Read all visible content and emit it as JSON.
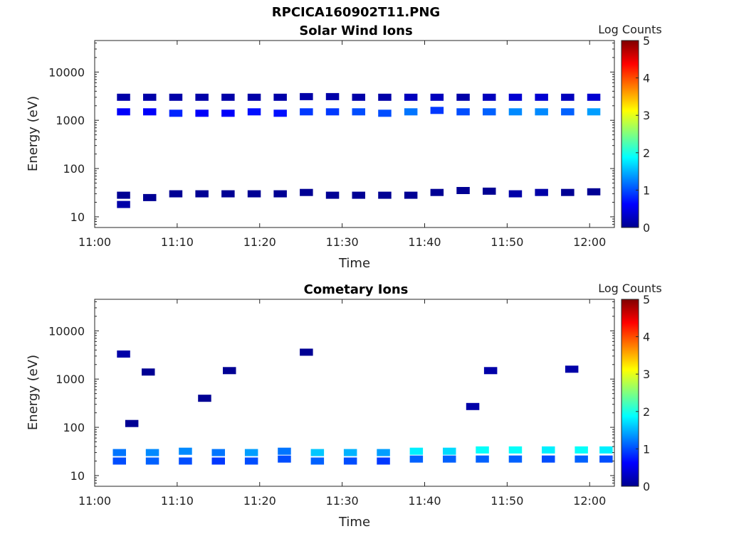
{
  "figure": {
    "title": "RPCICA160902T11.PNG"
  },
  "chart_data": [
    {
      "type": "heatmap",
      "title": "Solar Wind Ions",
      "xlabel": "Time",
      "ylabel": "Energy (eV)",
      "y_scale": "log",
      "xlim": [
        "11:00",
        "12:03"
      ],
      "ylim": [
        6,
        45000
      ],
      "x_ticks": [
        "11:00",
        "11:10",
        "11:20",
        "11:30",
        "11:40",
        "11:50",
        "12:00"
      ],
      "y_ticks": [
        "10",
        "100",
        "1000",
        "10000"
      ],
      "colorbar": {
        "label": "Log Counts",
        "range": [
          0,
          5
        ],
        "ticks": [
          "0",
          "1",
          "2",
          "3",
          "4",
          "5"
        ]
      },
      "cells": [
        {
          "t": "11:03:30",
          "e": 3000,
          "v": 0.2
        },
        {
          "t": "11:03:30",
          "e": 1500,
          "v": 0.6
        },
        {
          "t": "11:03:30",
          "e": 18,
          "v": 0.2
        },
        {
          "t": "11:03:30",
          "e": 28,
          "v": 0.1
        },
        {
          "t": "11:06:40",
          "e": 3000,
          "v": 0.2
        },
        {
          "t": "11:06:40",
          "e": 1500,
          "v": 0.6
        },
        {
          "t": "11:06:40",
          "e": 25,
          "v": 0.1
        },
        {
          "t": "11:09:50",
          "e": 3000,
          "v": 0.2
        },
        {
          "t": "11:09:50",
          "e": 1400,
          "v": 0.8
        },
        {
          "t": "11:09:50",
          "e": 30,
          "v": 0.1
        },
        {
          "t": "11:13:00",
          "e": 3000,
          "v": 0.2
        },
        {
          "t": "11:13:00",
          "e": 1400,
          "v": 0.6
        },
        {
          "t": "11:13:00",
          "e": 30,
          "v": 0.1
        },
        {
          "t": "11:16:10",
          "e": 3000,
          "v": 0.2
        },
        {
          "t": "11:16:10",
          "e": 1400,
          "v": 0.6
        },
        {
          "t": "11:16:10",
          "e": 30,
          "v": 0.1
        },
        {
          "t": "11:19:20",
          "e": 3000,
          "v": 0.2
        },
        {
          "t": "11:19:20",
          "e": 1500,
          "v": 0.7
        },
        {
          "t": "11:19:20",
          "e": 30,
          "v": 0.1
        },
        {
          "t": "11:22:30",
          "e": 3000,
          "v": 0.2
        },
        {
          "t": "11:22:30",
          "e": 1400,
          "v": 0.7
        },
        {
          "t": "11:22:30",
          "e": 30,
          "v": 0.1
        },
        {
          "t": "11:25:40",
          "e": 3100,
          "v": 0.2
        },
        {
          "t": "11:25:40",
          "e": 1500,
          "v": 0.9
        },
        {
          "t": "11:25:40",
          "e": 32,
          "v": 0.1
        },
        {
          "t": "11:28:50",
          "e": 3100,
          "v": 0.2
        },
        {
          "t": "11:28:50",
          "e": 1500,
          "v": 0.9
        },
        {
          "t": "11:28:50",
          "e": 28,
          "v": 0.1
        },
        {
          "t": "11:32:00",
          "e": 3000,
          "v": 0.2
        },
        {
          "t": "11:32:00",
          "e": 1500,
          "v": 1.0
        },
        {
          "t": "11:32:00",
          "e": 28,
          "v": 0.1
        },
        {
          "t": "11:35:10",
          "e": 3000,
          "v": 0.2
        },
        {
          "t": "11:35:10",
          "e": 1400,
          "v": 1.0
        },
        {
          "t": "11:35:10",
          "e": 28,
          "v": 0.1
        },
        {
          "t": "11:38:20",
          "e": 3000,
          "v": 0.3
        },
        {
          "t": "11:38:20",
          "e": 1500,
          "v": 1.2
        },
        {
          "t": "11:38:20",
          "e": 28,
          "v": 0.1
        },
        {
          "t": "11:41:30",
          "e": 3000,
          "v": 0.3
        },
        {
          "t": "11:41:30",
          "e": 1600,
          "v": 0.9
        },
        {
          "t": "11:41:30",
          "e": 32,
          "v": 0.1
        },
        {
          "t": "11:44:40",
          "e": 3000,
          "v": 0.2
        },
        {
          "t": "11:44:40",
          "e": 1500,
          "v": 1.0
        },
        {
          "t": "11:44:40",
          "e": 35,
          "v": 0.1
        },
        {
          "t": "11:47:50",
          "e": 3000,
          "v": 0.3
        },
        {
          "t": "11:47:50",
          "e": 1500,
          "v": 1.1
        },
        {
          "t": "11:47:50",
          "e": 34,
          "v": 0.1
        },
        {
          "t": "11:51:00",
          "e": 3000,
          "v": 0.4
        },
        {
          "t": "11:51:00",
          "e": 1500,
          "v": 1.3
        },
        {
          "t": "11:51:00",
          "e": 30,
          "v": 0.2
        },
        {
          "t": "11:54:10",
          "e": 3000,
          "v": 0.4
        },
        {
          "t": "11:54:10",
          "e": 1500,
          "v": 1.3
        },
        {
          "t": "11:54:10",
          "e": 32,
          "v": 0.2
        },
        {
          "t": "11:57:20",
          "e": 3000,
          "v": 0.3
        },
        {
          "t": "11:57:20",
          "e": 1500,
          "v": 1.1
        },
        {
          "t": "11:57:20",
          "e": 32,
          "v": 0.1
        },
        {
          "t": "12:00:30",
          "e": 3000,
          "v": 0.4
        },
        {
          "t": "12:00:30",
          "e": 1500,
          "v": 1.4
        },
        {
          "t": "12:00:30",
          "e": 33,
          "v": 0.1
        }
      ]
    },
    {
      "type": "heatmap",
      "title": "Cometary Ions",
      "xlabel": "Time",
      "ylabel": "Energy (eV)",
      "y_scale": "log",
      "xlim": [
        "11:00",
        "12:03"
      ],
      "ylim": [
        6,
        45000
      ],
      "x_ticks": [
        "11:00",
        "11:10",
        "11:20",
        "11:30",
        "11:40",
        "11:50",
        "12:00"
      ],
      "y_ticks": [
        "10",
        "100",
        "1000",
        "10000"
      ],
      "colorbar": {
        "label": "Log Counts",
        "range": [
          0,
          5
        ],
        "ticks": [
          "0",
          "1",
          "2",
          "3",
          "4",
          "5"
        ]
      },
      "cells": [
        {
          "t": "11:03:30",
          "e": 3300,
          "v": 0.2
        },
        {
          "t": "11:04:30",
          "e": 120,
          "v": 0.1
        },
        {
          "t": "11:06:30",
          "e": 1400,
          "v": 0.1
        },
        {
          "t": "11:13:20",
          "e": 400,
          "v": 0.1
        },
        {
          "t": "11:16:20",
          "e": 1500,
          "v": 0.1
        },
        {
          "t": "11:25:40",
          "e": 3600,
          "v": 0.1
        },
        {
          "t": "11:45:50",
          "e": 270,
          "v": 0.2
        },
        {
          "t": "11:48:00",
          "e": 1500,
          "v": 0.2
        },
        {
          "t": "11:57:50",
          "e": 1600,
          "v": 0.2
        },
        {
          "t": "11:03:00",
          "e": 30,
          "v": 1.2
        },
        {
          "t": "11:03:00",
          "e": 20,
          "v": 1.0
        },
        {
          "t": "11:07:00",
          "e": 30,
          "v": 1.3
        },
        {
          "t": "11:07:00",
          "e": 20,
          "v": 1.1
        },
        {
          "t": "11:11:00",
          "e": 32,
          "v": 1.3
        },
        {
          "t": "11:11:00",
          "e": 20,
          "v": 1.0
        },
        {
          "t": "11:15:00",
          "e": 30,
          "v": 1.2
        },
        {
          "t": "11:15:00",
          "e": 20,
          "v": 0.9
        },
        {
          "t": "11:19:00",
          "e": 30,
          "v": 1.4
        },
        {
          "t": "11:19:00",
          "e": 20,
          "v": 1.0
        },
        {
          "t": "11:23:00",
          "e": 32,
          "v": 1.2
        },
        {
          "t": "11:23:00",
          "e": 22,
          "v": 1.0
        },
        {
          "t": "11:27:00",
          "e": 30,
          "v": 1.6
        },
        {
          "t": "11:27:00",
          "e": 20,
          "v": 1.1
        },
        {
          "t": "11:31:00",
          "e": 30,
          "v": 1.5
        },
        {
          "t": "11:31:00",
          "e": 20,
          "v": 1.0
        },
        {
          "t": "11:35:00",
          "e": 30,
          "v": 1.4
        },
        {
          "t": "11:35:00",
          "e": 20,
          "v": 0.9
        },
        {
          "t": "11:39:00",
          "e": 32,
          "v": 1.8
        },
        {
          "t": "11:39:00",
          "e": 22,
          "v": 1.1
        },
        {
          "t": "11:43:00",
          "e": 32,
          "v": 1.7
        },
        {
          "t": "11:43:00",
          "e": 22,
          "v": 1.1
        },
        {
          "t": "11:47:00",
          "e": 34,
          "v": 1.9
        },
        {
          "t": "11:47:00",
          "e": 22,
          "v": 1.1
        },
        {
          "t": "11:51:00",
          "e": 34,
          "v": 1.9
        },
        {
          "t": "11:51:00",
          "e": 22,
          "v": 1.1
        },
        {
          "t": "11:55:00",
          "e": 34,
          "v": 1.8
        },
        {
          "t": "11:55:00",
          "e": 22,
          "v": 1.0
        },
        {
          "t": "11:59:00",
          "e": 34,
          "v": 1.9
        },
        {
          "t": "11:59:00",
          "e": 22,
          "v": 1.1
        },
        {
          "t": "12:02:00",
          "e": 34,
          "v": 1.8
        },
        {
          "t": "12:02:00",
          "e": 22,
          "v": 1.0
        }
      ]
    }
  ]
}
